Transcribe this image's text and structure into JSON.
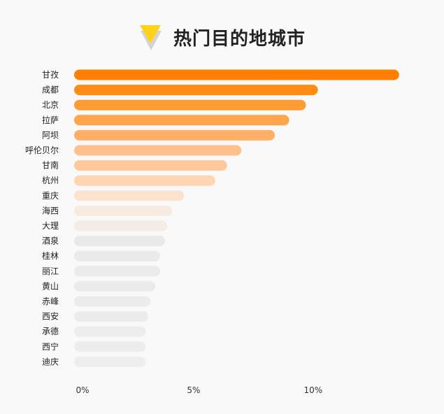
{
  "header": {
    "title": "热门目的地城市",
    "icon": "yellow-triangle-icon"
  },
  "chart_data": {
    "type": "bar",
    "orientation": "horizontal",
    "title": "热门目的地城市",
    "xlabel": "",
    "ylabel": "",
    "xlim": [
      0,
      14.6
    ],
    "xticks": [
      {
        "value": 0,
        "label": "0%"
      },
      {
        "value": 5,
        "label": "5%"
      },
      {
        "value": 10,
        "label": "10%"
      }
    ],
    "grid": false,
    "categories": [
      "甘孜",
      "成都",
      "北京",
      "拉萨",
      "阿坝",
      "呼伦贝尔",
      "甘南",
      "杭州",
      "重庆",
      "海西",
      "大理",
      "酒泉",
      "桂林",
      "丽江",
      "黄山",
      "赤峰",
      "西安",
      "承德",
      "西宁",
      "迪庆"
    ],
    "values": [
      13.6,
      10.2,
      9.7,
      9.0,
      8.4,
      7.0,
      6.4,
      5.9,
      4.6,
      4.1,
      3.9,
      3.8,
      3.6,
      3.6,
      3.4,
      3.2,
      3.1,
      3.0,
      3.0,
      3.0
    ],
    "colors": [
      "#ff8000",
      "#ff8c14",
      "#ff9c33",
      "#ffa64d",
      "#ffb066",
      "#ffc08c",
      "#ffc99c",
      "#ffd4b0",
      "#fde2cf",
      "#f6ebdf",
      "#f3ede6",
      "#e9e9e9",
      "#eaeaea",
      "#ebebeb",
      "#ebebeb",
      "#ececec",
      "#ececec",
      "#ededed",
      "#ededed",
      "#eeeeee"
    ]
  }
}
